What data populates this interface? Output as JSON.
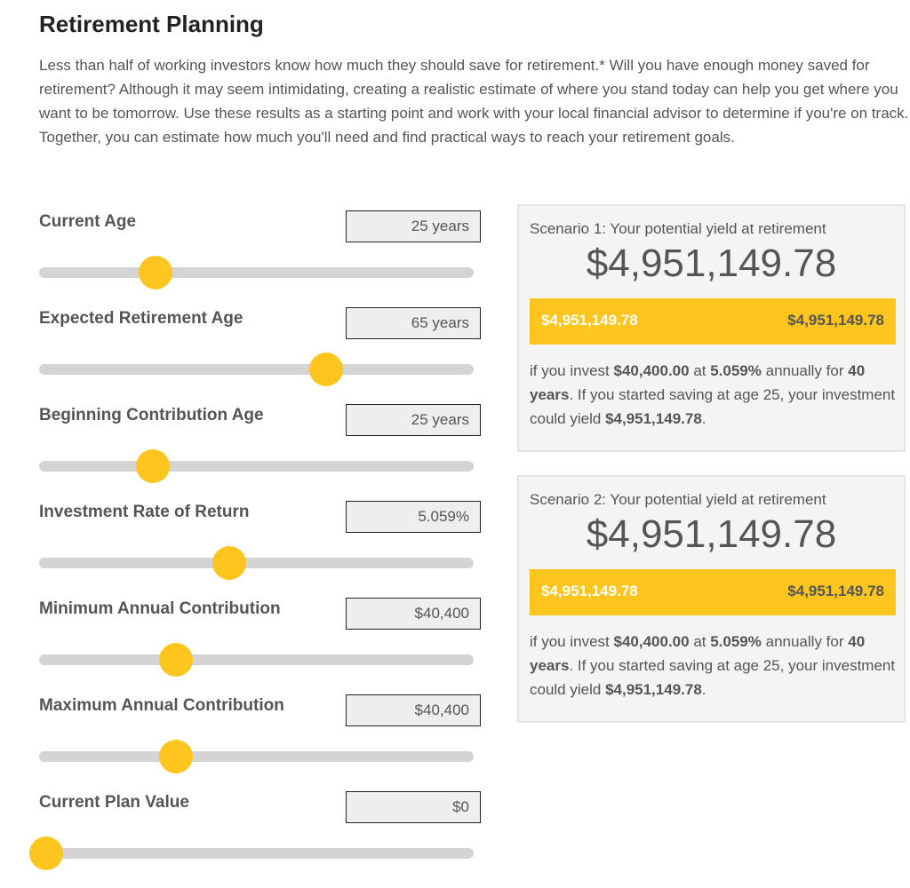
{
  "title": "Retirement Planning",
  "intro": "Less than half of working investors know how much they should save for retirement.* Will you have enough money saved for retirement? Although it may seem intimidating, creating a realistic estimate of where you stand today can help you get where you want to be tomorrow. Use these results as a starting point and work with your local financial advisor to determine if you're on track. Together, you can estimate how much you'll need and find practical ways to reach your retirement goals.",
  "accent_color": "#fdc51e",
  "fields": [
    {
      "label": "Current Age",
      "value": "25 years",
      "slider_percent": 26.8
    },
    {
      "label": "Expected Retirement Age",
      "value": "65 years",
      "slider_percent": 66
    },
    {
      "label": "Beginning Contribution Age",
      "value": "25 years",
      "slider_percent": 26.2
    },
    {
      "label": "Investment Rate of Return",
      "value": "5.059%",
      "slider_percent": 43.8
    },
    {
      "label": "Minimum Annual Contribution",
      "value": "$40,400",
      "slider_percent": 31.5
    },
    {
      "label": "Maximum Annual Contribution",
      "value": "$40,400",
      "slider_percent": 31.5
    },
    {
      "label": "Current Plan Value",
      "value": "$0",
      "slider_percent": 1.6
    }
  ],
  "scenarios": [
    {
      "title": "Scenario 1: Your potential yield at retirement",
      "total": "$4,951,149.78",
      "bar_left": "$4,951,149.78",
      "bar_right": "$4,951,149.78",
      "d1": "if you invest ",
      "amount": "$40,400.00",
      "d2": " at ",
      "rate": "5.059%",
      "d3": " annually for ",
      "years": "40 years",
      "d4": ". If you started saving at age 25, your investment could yield ",
      "yield": "$4,951,149.78",
      "d5": "."
    },
    {
      "title": "Scenario 2: Your potential yield at retirement",
      "total": "$4,951,149.78",
      "bar_left": "$4,951,149.78",
      "bar_right": "$4,951,149.78",
      "d1": "if you invest ",
      "amount": "$40,400.00",
      "d2": " at ",
      "rate": "5.059%",
      "d3": " annually for ",
      "years": "40 years",
      "d4": ". If you started saving at age 25, your investment could yield ",
      "yield": "$4,951,149.78",
      "d5": "."
    }
  ]
}
